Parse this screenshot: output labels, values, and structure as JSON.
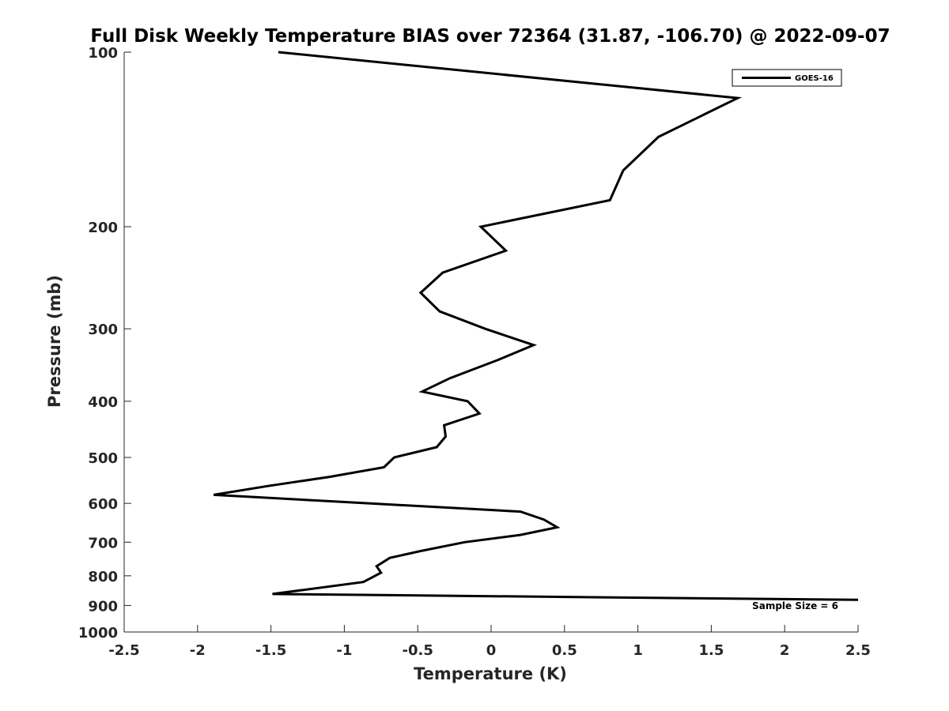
{
  "chart_data": {
    "type": "line",
    "title": "Full Disk Weekly Temperature BIAS over 72364 (31.87, -106.70) @ 2022-09-07",
    "xlabel": "Temperature (K)",
    "ylabel": "Pressure (mb)",
    "xlim": [
      -2.5,
      2.5
    ],
    "ylim": [
      100,
      1000
    ],
    "y_scale": "log",
    "y_reversed": true,
    "grid": false,
    "legend_position": "top-right",
    "x_ticks": [
      -2.5,
      -2,
      -1.5,
      -1,
      -0.5,
      0,
      0.5,
      1,
      1.5,
      2,
      2.5
    ],
    "x_tick_labels": [
      "-2.5",
      "-2",
      "-1.5",
      "-1",
      "-0.5",
      "0",
      "0.5",
      "1",
      "1.5",
      "2",
      "2.5"
    ],
    "y_ticks": [
      100,
      200,
      300,
      400,
      500,
      600,
      700,
      800,
      900,
      1000
    ],
    "y_tick_labels": [
      "100",
      "200",
      "300",
      "400",
      "500",
      "600",
      "700",
      "800",
      "900",
      "1000"
    ],
    "annotation": "Sample Size = 6",
    "series": [
      {
        "name": "GOES-16",
        "color": "#000000",
        "points": [
          {
            "x": -1.45,
            "y": 100
          },
          {
            "x": 1.68,
            "y": 120
          },
          {
            "x": 1.14,
            "y": 140
          },
          {
            "x": 0.9,
            "y": 160
          },
          {
            "x": 0.81,
            "y": 180
          },
          {
            "x": -0.07,
            "y": 200
          },
          {
            "x": 0.1,
            "y": 220
          },
          {
            "x": -0.33,
            "y": 240
          },
          {
            "x": -0.48,
            "y": 260
          },
          {
            "x": -0.35,
            "y": 280
          },
          {
            "x": -0.04,
            "y": 300
          },
          {
            "x": 0.29,
            "y": 320
          },
          {
            "x": 0.04,
            "y": 340
          },
          {
            "x": -0.28,
            "y": 365
          },
          {
            "x": -0.47,
            "y": 385
          },
          {
            "x": -0.16,
            "y": 400
          },
          {
            "x": -0.08,
            "y": 420
          },
          {
            "x": -0.32,
            "y": 440
          },
          {
            "x": -0.31,
            "y": 460
          },
          {
            "x": -0.37,
            "y": 480
          },
          {
            "x": -0.66,
            "y": 500
          },
          {
            "x": -0.73,
            "y": 520
          },
          {
            "x": -1.1,
            "y": 540
          },
          {
            "x": -1.52,
            "y": 560
          },
          {
            "x": -1.89,
            "y": 580
          },
          {
            "x": 0.2,
            "y": 620
          },
          {
            "x": 0.36,
            "y": 640
          },
          {
            "x": 0.45,
            "y": 660
          },
          {
            "x": 0.2,
            "y": 680
          },
          {
            "x": -0.18,
            "y": 700
          },
          {
            "x": -0.48,
            "y": 725
          },
          {
            "x": -0.69,
            "y": 745
          },
          {
            "x": -0.78,
            "y": 770
          },
          {
            "x": -0.75,
            "y": 790
          },
          {
            "x": -0.87,
            "y": 820
          },
          {
            "x": -1.49,
            "y": 860
          },
          {
            "x": 2.5,
            "y": 880
          }
        ]
      }
    ]
  }
}
